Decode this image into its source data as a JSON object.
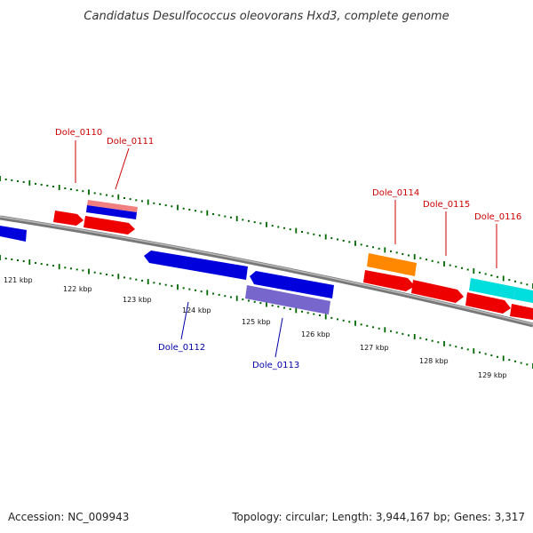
{
  "title": "Candidatus Desulfococcus oleovorans Hxd3, complete genome",
  "footer": {
    "accession": "Accession: NC_009943",
    "summary": "Topology: circular; Length: 3,944,167 bp; Genes: 3,317"
  },
  "ruler": {
    "tick_labels": [
      "121 kbp",
      "122 kbp",
      "123 kbp",
      "124 kbp",
      "125 kbp",
      "126 kbp",
      "127 kbp",
      "128 kbp",
      "129 kbp"
    ]
  },
  "genes": {
    "forward_labels": [
      "Dole_0110",
      "Dole_0111",
      "Dole_0114",
      "Dole_0115",
      "Dole_0116"
    ],
    "reverse_labels": [
      "Dole_0112",
      "Dole_0113"
    ]
  },
  "colors": {
    "forward_label": "#cc0000",
    "reverse_label": "#0000aa",
    "forward_cds": "#ee0000",
    "reverse_cds": "#0000dd",
    "rna_gene": "#ff8800",
    "pseudo_light_red": "#f08080",
    "pseudo_violet": "#7766cc",
    "other_cds": "#00dddd",
    "tick": "#006600",
    "backbone": "#888888"
  }
}
